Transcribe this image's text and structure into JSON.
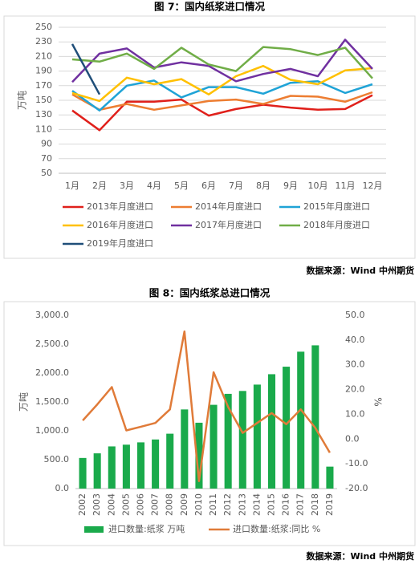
{
  "caption_1": "图 7：国内纸浆进口情况",
  "source_1": "数据来源：Wind 中州期货",
  "caption_2": "图 8：国内纸浆总进口情况",
  "source_2": "数据来源：Wind 中州期货",
  "chart_data": [
    {
      "type": "line",
      "y_label": "万吨",
      "categories": [
        "1月",
        "2月",
        "3月",
        "4月",
        "5月",
        "6月",
        "7月",
        "8月",
        "9月",
        "10月",
        "11月",
        "12月"
      ],
      "ylim": [
        50,
        250
      ],
      "yticks": [
        50,
        70,
        90,
        110,
        130,
        150,
        170,
        190,
        210,
        230,
        250
      ],
      "grid": true,
      "series": [
        {
          "name": "2013年月度进口",
          "color": "#e0201b",
          "values": [
            136,
            109,
            148,
            148,
            151,
            129,
            138,
            144,
            140,
            137,
            138,
            157
          ]
        },
        {
          "name": "2014年月度进口",
          "color": "#ed7d31",
          "values": [
            158,
            137,
            145,
            137,
            143,
            149,
            151,
            145,
            156,
            155,
            148,
            161
          ]
        },
        {
          "name": "2015年月度进口",
          "color": "#1fa3d6",
          "values": [
            163,
            136,
            170,
            177,
            154,
            168,
            168,
            159,
            174,
            176,
            160,
            172
          ]
        },
        {
          "name": "2016年月度进口",
          "color": "#ffc000",
          "values": [
            160,
            149,
            181,
            172,
            179,
            158,
            183,
            197,
            178,
            172,
            191,
            194
          ]
        },
        {
          "name": "2017年月度进口",
          "color": "#7030a0",
          "values": [
            175,
            214,
            221,
            195,
            202,
            197,
            176,
            186,
            193,
            183,
            233,
            193
          ]
        },
        {
          "name": "2018年月度进口",
          "color": "#70ad47",
          "values": [
            206,
            203,
            214,
            193,
            222,
            199,
            190,
            223,
            220,
            212,
            222,
            180
          ]
        },
        {
          "name": "2019年月度进口",
          "color": "#1f4e79",
          "values": [
            227,
            158,
            null,
            null,
            null,
            null,
            null,
            null,
            null,
            null,
            null,
            null
          ]
        }
      ]
    },
    {
      "type": "bar",
      "y_label": "万吨",
      "y2_label": "%",
      "categories": [
        "2002",
        "2003",
        "2004",
        "2005",
        "2006",
        "2007",
        "2008",
        "2009",
        "2010",
        "2011",
        "2012",
        "2013",
        "2014",
        "2015",
        "2016",
        "2017",
        "2018",
        "2019"
      ],
      "ylim": [
        0,
        3000
      ],
      "yticks": [
        {
          "value": 0,
          "label": "0.0"
        },
        {
          "value": 500,
          "label": "500.0"
        },
        {
          "value": 1000,
          "label": "1,000.0"
        },
        {
          "value": 1500,
          "label": "1,500.0"
        },
        {
          "value": 2000,
          "label": "2,000.0"
        },
        {
          "value": 2500,
          "label": "2,500.0"
        },
        {
          "value": 3000,
          "label": "3,000.0"
        }
      ],
      "y2lim": [
        -20,
        50
      ],
      "y2ticks": [
        {
          "value": -20,
          "label": "-20.0"
        },
        {
          "value": -10,
          "label": "-10.0"
        },
        {
          "value": 0,
          "label": "0.0"
        },
        {
          "value": 10,
          "label": "10.0"
        },
        {
          "value": 20,
          "label": "20.0"
        },
        {
          "value": 30,
          "label": "30.0"
        },
        {
          "value": 40,
          "label": "40.0"
        },
        {
          "value": 50,
          "label": "50.0"
        }
      ],
      "grid": false,
      "series": [
        {
          "name": "进口数量:纸浆 万吨",
          "type": "bar",
          "color": "#1aaa4b",
          "values": [
            530,
            610,
            730,
            760,
            800,
            850,
            950,
            1370,
            1140,
            1450,
            1640,
            1690,
            1800,
            1980,
            2110,
            2370,
            2480,
            380
          ]
        },
        {
          "name": "进口数量:纸浆:同比 %",
          "type": "line",
          "axis": "y2",
          "color": "#e07b39",
          "values": [
            7.5,
            14,
            21,
            3.5,
            5,
            6.5,
            12,
            43.5,
            -17,
            27,
            13,
            2.5,
            6.5,
            10.5,
            6,
            12,
            4.5,
            -5.5
          ]
        }
      ]
    }
  ]
}
